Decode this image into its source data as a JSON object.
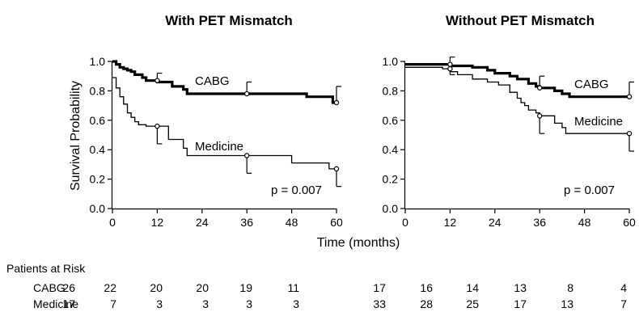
{
  "chart_data": [
    {
      "type": "line",
      "subtype": "kaplan-meier",
      "title": "With PET Mismatch",
      "xlabel": "Time (months)",
      "ylabel": "Survival Probability",
      "xlim": [
        0,
        60
      ],
      "ylim": [
        0,
        1.0
      ],
      "xticks": [
        0,
        12,
        24,
        36,
        48,
        60
      ],
      "yticks": [
        0.0,
        0.2,
        0.4,
        0.6,
        0.8,
        1.0
      ],
      "annotation": "p = 0.007",
      "series": [
        {
          "name": "CABG",
          "style": "thick",
          "x": [
            0,
            1,
            2,
            3,
            4,
            5,
            6,
            8,
            9,
            12,
            16,
            19,
            20,
            36,
            52,
            59,
            60
          ],
          "y": [
            1.0,
            0.98,
            0.96,
            0.95,
            0.94,
            0.93,
            0.91,
            0.89,
            0.87,
            0.86,
            0.83,
            0.81,
            0.78,
            0.78,
            0.76,
            0.72,
            0.72
          ],
          "ci_points": [
            {
              "x": 12,
              "y": 0.87,
              "upper": 0.92
            },
            {
              "x": 36,
              "y": 0.78,
              "upper": 0.86
            },
            {
              "x": 60,
              "y": 0.72,
              "upper": 0.83
            }
          ]
        },
        {
          "name": "Medicine",
          "style": "thin",
          "x": [
            0,
            1,
            2,
            3,
            4,
            5,
            6,
            7,
            9,
            12,
            15,
            17,
            19,
            20,
            36,
            48,
            58,
            60
          ],
          "y": [
            0.89,
            0.82,
            0.76,
            0.71,
            0.65,
            0.62,
            0.59,
            0.57,
            0.56,
            0.56,
            0.47,
            0.47,
            0.41,
            0.36,
            0.36,
            0.31,
            0.27,
            0.27
          ],
          "ci_points": [
            {
              "x": 12,
              "y": 0.56,
              "lower": 0.44
            },
            {
              "x": 36,
              "y": 0.36,
              "lower": 0.24
            },
            {
              "x": 60,
              "y": 0.27,
              "lower": 0.15
            }
          ]
        }
      ],
      "patients_at_risk": {
        "CABG": [
          26,
          22,
          20,
          20,
          19,
          11
        ],
        "Medicine": [
          17,
          7,
          3,
          3,
          3,
          3
        ]
      }
    },
    {
      "type": "line",
      "subtype": "kaplan-meier",
      "title": "Without PET Mismatch",
      "xlabel": "Time (months)",
      "ylabel": "",
      "xlim": [
        0,
        60
      ],
      "ylim": [
        0,
        1.0
      ],
      "xticks": [
        0,
        12,
        24,
        36,
        48,
        60
      ],
      "yticks": [
        0.0,
        0.2,
        0.4,
        0.6,
        0.8,
        1.0
      ],
      "annotation": "p = 0.007",
      "series": [
        {
          "name": "CABG",
          "style": "thick",
          "x": [
            0,
            10,
            12,
            18,
            22,
            24,
            28,
            30,
            33,
            35,
            36,
            38,
            40,
            42,
            44,
            60
          ],
          "y": [
            0.98,
            0.98,
            0.97,
            0.96,
            0.94,
            0.92,
            0.9,
            0.88,
            0.85,
            0.83,
            0.82,
            0.82,
            0.8,
            0.78,
            0.76,
            0.76
          ],
          "ci_points": [
            {
              "x": 12,
              "y": 0.98,
              "upper": 1.03
            },
            {
              "x": 36,
              "y": 0.82,
              "upper": 0.9
            },
            {
              "x": 60,
              "y": 0.76,
              "upper": 0.86
            }
          ]
        },
        {
          "name": "Medicine",
          "style": "thin",
          "x": [
            0,
            8,
            10,
            12,
            14,
            18,
            22,
            25,
            28,
            30,
            31,
            32,
            33,
            35,
            36,
            38,
            40,
            42,
            43,
            60
          ],
          "y": [
            0.96,
            0.96,
            0.95,
            0.93,
            0.91,
            0.88,
            0.86,
            0.84,
            0.79,
            0.75,
            0.72,
            0.7,
            0.67,
            0.65,
            0.63,
            0.63,
            0.58,
            0.55,
            0.51,
            0.51
          ],
          "ci_points": [
            {
              "x": 12,
              "y": 0.95,
              "lower": 0.91
            },
            {
              "x": 36,
              "y": 0.63,
              "lower": 0.51
            },
            {
              "x": 60,
              "y": 0.51,
              "lower": 0.39
            }
          ]
        }
      ],
      "patients_at_risk": {
        "CABG": [
          17,
          16,
          14,
          13,
          8,
          4
        ],
        "Medicine": [
          33,
          28,
          25,
          17,
          13,
          7
        ]
      }
    }
  ],
  "patients_at_risk_title": "Patients at Risk",
  "risk_groups": [
    "CABG",
    "Medicine"
  ]
}
